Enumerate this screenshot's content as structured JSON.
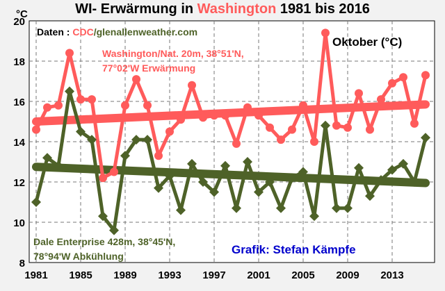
{
  "title": {
    "part1": "WI- Erwärmung in ",
    "highlight": "Washington",
    "part2": " 1981 bis 2016"
  },
  "y_unit": "°C",
  "source": {
    "prefix": "Daten : ",
    "cdc": "CDC",
    "rest": "/glenallenweather.com"
  },
  "month_label": "Oktober (°C)",
  "washington_label": {
    "line1": "Washington/Nat. 20m, 38°51'N,",
    "line2": "77°02'W Erwärmung"
  },
  "dale_label": {
    "line1": "Dale Enterprise 428m, 38°45'N,",
    "line2": "78°94'W  Abkühlung"
  },
  "credit": "Grafik: Stefan Kämpfe",
  "colors": {
    "washington": "#ff5b5b",
    "dale": "#4e6228",
    "credit": "#0000cc",
    "grid": "#777777"
  },
  "chart_data": {
    "type": "line",
    "x": [
      1981,
      1982,
      1983,
      1984,
      1985,
      1986,
      1987,
      1988,
      1989,
      1990,
      1991,
      1992,
      1993,
      1994,
      1995,
      1996,
      1997,
      1998,
      1999,
      2000,
      2001,
      2002,
      2003,
      2004,
      2005,
      2006,
      2007,
      2008,
      2009,
      2010,
      2011,
      2012,
      2013,
      2014,
      2015,
      2016
    ],
    "series": [
      {
        "name": "Washington/Nat. 20m, 38°51'N, 77°02'W Erwärmung",
        "color": "#ff5b5b",
        "values": [
          14.6,
          15.7,
          15.8,
          18.4,
          16.1,
          16.1,
          12.2,
          12.5,
          15.8,
          17.1,
          15.8,
          13.3,
          14.5,
          15.1,
          16.8,
          15.2,
          15.3,
          15.3,
          13.9,
          15.7,
          15.3,
          14.7,
          14.1,
          14.6,
          15.8,
          14.0,
          19.4,
          14.8,
          14.7,
          16.4,
          14.6,
          16.1,
          16.9,
          17.2,
          14.9,
          17.3
        ],
        "trend": [
          15.0,
          15.85
        ]
      },
      {
        "name": "Dale Enterprise 428m, 38°45'N, 78°94'W  Abkühlung",
        "color": "#4e6228",
        "values": [
          11.0,
          13.2,
          12.8,
          16.5,
          14.5,
          14.1,
          10.3,
          9.6,
          13.3,
          14.1,
          14.1,
          11.7,
          12.3,
          10.6,
          12.9,
          12.0,
          11.5,
          12.8,
          10.7,
          13.0,
          11.5,
          12.0,
          10.7,
          12.2,
          12.5,
          10.3,
          14.8,
          10.7,
          10.7,
          12.7,
          11.3,
          12.1,
          12.6,
          12.9,
          12.0,
          14.2
        ],
        "trend": [
          12.75,
          11.95
        ]
      }
    ],
    "xticks": [
      1981,
      1985,
      1989,
      1993,
      1997,
      2001,
      2005,
      2009,
      2013
    ],
    "yticks": [
      8,
      10,
      12,
      14,
      16,
      18,
      20
    ],
    "xlim": [
      1981,
      2016
    ],
    "ylim": [
      8,
      20
    ],
    "ylabel": "°C",
    "grid": true,
    "legend": "none"
  }
}
